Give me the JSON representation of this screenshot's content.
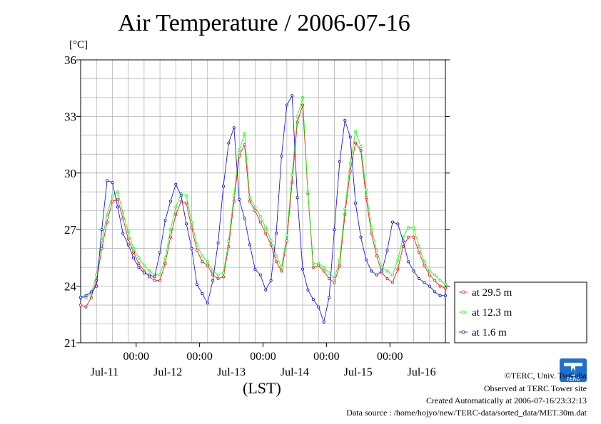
{
  "chart_data": {
    "type": "line",
    "title": "Air Temperature / 2006-07-16",
    "ylabel": "[°C]",
    "xlabel": "(LST)",
    "ylim": [
      21,
      36
    ],
    "yticks": [
      21,
      24,
      27,
      30,
      33,
      36
    ],
    "x_time_labels": [
      "00:00",
      "00:00",
      "00:00",
      "00:00",
      "00:00"
    ],
    "x_date_labels": [
      "Jul-11",
      "Jul-12",
      "Jul-13",
      "Jul-14",
      "Jul-15",
      "Jul-16"
    ],
    "x_range_hours": [
      0,
      138
    ],
    "grid": true,
    "legend_position": "right",
    "series": [
      {
        "name": "at 29.5 m",
        "color": "#ff0000",
        "x": [
          0,
          2,
          4,
          6,
          8,
          10,
          12,
          14,
          16,
          18,
          20,
          22,
          24,
          26,
          28,
          30,
          32,
          34,
          36,
          38,
          40,
          42,
          44,
          46,
          48,
          50,
          52,
          54,
          56,
          58,
          60,
          62,
          64,
          66,
          68,
          70,
          72,
          74,
          76,
          78,
          80,
          82,
          84,
          86,
          88,
          90,
          92,
          94,
          96,
          98,
          100,
          102,
          104,
          106,
          108,
          110,
          112,
          114,
          116,
          118,
          120,
          122,
          124,
          126,
          128,
          130,
          132,
          134,
          136,
          138
        ],
        "y": [
          23.0,
          22.9,
          23.4,
          24.3,
          26.0,
          27.4,
          28.5,
          28.6,
          27.6,
          26.5,
          25.8,
          25.2,
          24.8,
          24.5,
          24.3,
          24.3,
          25.2,
          26.6,
          27.8,
          28.5,
          28.4,
          27.1,
          25.9,
          25.3,
          25.1,
          24.6,
          24.4,
          24.5,
          26.1,
          28.5,
          30.9,
          31.5,
          28.5,
          28.0,
          27.4,
          26.8,
          26.2,
          25.3,
          24.8,
          26.4,
          29.5,
          32.7,
          33.6,
          28.9,
          25.0,
          25.1,
          24.8,
          24.4,
          24.2,
          25.1,
          27.8,
          30.1,
          31.6,
          31.2,
          28.7,
          26.8,
          25.6,
          24.7,
          24.4,
          24.2,
          24.9,
          26.1,
          26.6,
          26.6,
          25.8,
          25.1,
          24.6,
          24.3,
          24.0,
          23.9
        ]
      },
      {
        "name": "at 12.3 m",
        "color": "#00ff00",
        "x": [
          0,
          2,
          4,
          6,
          8,
          10,
          12,
          14,
          16,
          18,
          20,
          22,
          24,
          26,
          28,
          30,
          32,
          34,
          36,
          38,
          40,
          42,
          44,
          46,
          48,
          50,
          52,
          54,
          56,
          58,
          60,
          62,
          64,
          66,
          68,
          70,
          72,
          74,
          76,
          78,
          80,
          82,
          84,
          86,
          88,
          90,
          92,
          94,
          96,
          98,
          100,
          102,
          104,
          106,
          108,
          110,
          112,
          114,
          116,
          118,
          120,
          122,
          124,
          126,
          128,
          130,
          132,
          134,
          136,
          138
        ],
        "y": [
          23.4,
          23.4,
          23.6,
          24.6,
          26.4,
          27.8,
          28.8,
          29.0,
          27.9,
          26.9,
          26.0,
          25.5,
          25.1,
          24.8,
          24.6,
          24.6,
          25.5,
          27.0,
          28.2,
          28.9,
          28.8,
          27.4,
          26.2,
          25.6,
          25.3,
          24.8,
          24.6,
          24.7,
          26.4,
          28.8,
          31.2,
          32.1,
          28.7,
          28.2,
          27.7,
          27.1,
          26.4,
          25.6,
          25.0,
          26.7,
          29.9,
          33.0,
          34.0,
          29.0,
          25.2,
          25.2,
          25.0,
          24.7,
          24.4,
          25.4,
          28.1,
          30.5,
          32.2,
          31.4,
          29.1,
          27.1,
          25.9,
          25.0,
          24.8,
          24.6,
          25.4,
          26.6,
          27.1,
          27.1,
          26.1,
          25.3,
          24.8,
          24.6,
          24.3,
          24.1
        ]
      },
      {
        "name": "at 1.6 m",
        "color": "#0000ff",
        "x": [
          0,
          2,
          4,
          6,
          8,
          10,
          12,
          14,
          16,
          18,
          20,
          22,
          24,
          26,
          28,
          30,
          32,
          34,
          36,
          38,
          40,
          42,
          44,
          46,
          48,
          50,
          52,
          54,
          56,
          58,
          60,
          62,
          64,
          66,
          68,
          70,
          72,
          74,
          76,
          78,
          80,
          82,
          84,
          86,
          88,
          90,
          92,
          94,
          96,
          98,
          100,
          102,
          104,
          106,
          108,
          110,
          112,
          114,
          116,
          118,
          120,
          122,
          124,
          126,
          128,
          130,
          132,
          134,
          136,
          138
        ],
        "y": [
          23.4,
          23.5,
          23.7,
          24.0,
          27.0,
          29.6,
          29.5,
          28.2,
          26.8,
          26.2,
          25.5,
          25.0,
          24.7,
          24.6,
          24.5,
          25.8,
          27.5,
          28.5,
          29.4,
          28.8,
          27.3,
          26.0,
          24.1,
          23.6,
          23.1,
          24.3,
          26.3,
          29.3,
          31.6,
          32.4,
          28.6,
          27.6,
          26.2,
          24.9,
          24.6,
          23.8,
          24.3,
          26.8,
          30.9,
          33.6,
          34.1,
          28.7,
          24.9,
          23.8,
          23.3,
          22.9,
          22.1,
          23.4,
          27.0,
          30.6,
          32.8,
          31.9,
          28.4,
          26.6,
          25.4,
          24.8,
          24.6,
          24.8,
          25.9,
          27.4,
          27.3,
          26.4,
          25.3,
          24.8,
          24.4,
          24.2,
          24.0,
          23.7,
          23.5,
          23.5
        ]
      }
    ]
  },
  "credits": {
    "copyright": "©TERC, Univ. Tsukuba",
    "observed": "Observed at TERC Tower site",
    "created": "Created Automatically at 2006-07-16/23:32:13",
    "source": "Data source : /home/hojyo/new/TERC-data/sorted_data/MET.30m.dat"
  },
  "logo_text": "TERC"
}
